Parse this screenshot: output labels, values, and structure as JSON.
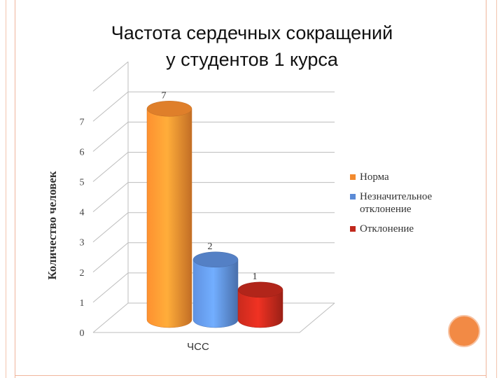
{
  "slide": {
    "title_line1": "Частота сердечных сокращений",
    "title_line2": "у студентов 1 курса"
  },
  "colors": {
    "frame": "#f0b59b",
    "accent_circle": "#f28a45"
  },
  "chart_data": {
    "type": "bar",
    "style": "3d-cylinder",
    "categories": [
      "ЧСС"
    ],
    "series": [
      {
        "name": "Норма",
        "values": [
          7
        ],
        "color": "#f28a2e"
      },
      {
        "name": "Незначительное отклонение",
        "values": [
          2
        ],
        "color": "#5b8bd6"
      },
      {
        "name": "Отклонение",
        "values": [
          1
        ],
        "color": "#c0281c"
      }
    ],
    "data_labels": [
      "7",
      "2",
      "1"
    ],
    "xlabel": "ЧСС",
    "ylabel": "Количество человек",
    "ylim": [
      0,
      7
    ],
    "yticks": [
      "0",
      "1",
      "2",
      "3",
      "4",
      "5",
      "6",
      "7"
    ],
    "grid": true,
    "legend_position": "right"
  }
}
